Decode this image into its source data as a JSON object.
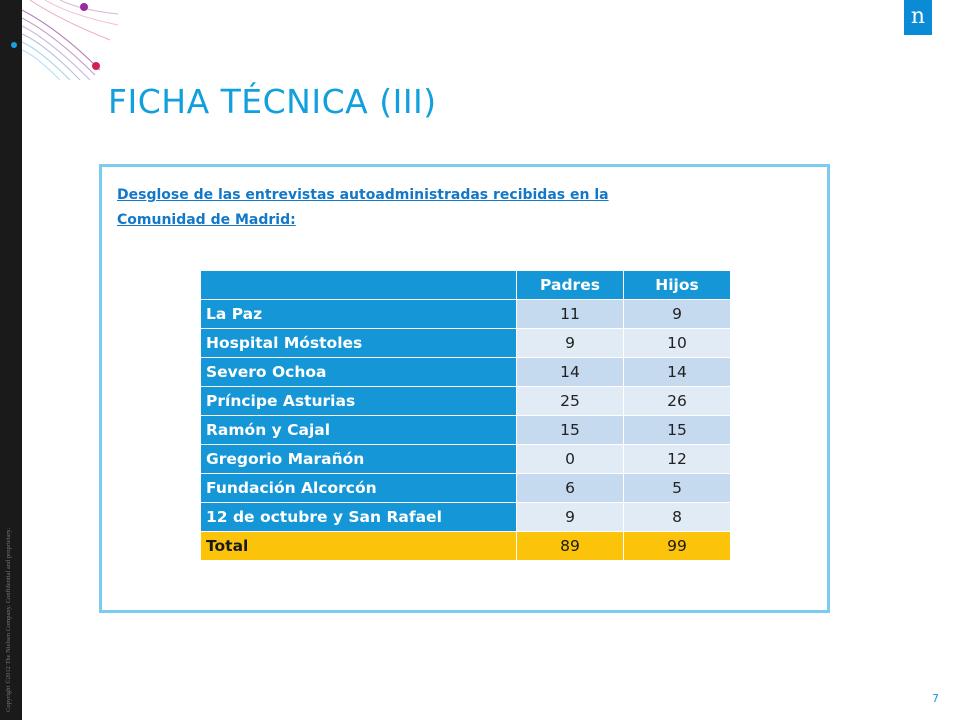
{
  "slide": {
    "title": "FICHA TÉCNICA (III)",
    "intro": "Desglose de las entrevistas autoadministradas  recibidas en la Comunidad  de Madrid:",
    "copyright": "Copyright ©2012 The Nielsen Company. Confidential and proprietary.",
    "page_number": "7",
    "logo_glyph": "n"
  },
  "table": {
    "headers": [
      "",
      "Padres",
      "Hijos"
    ],
    "rows": [
      {
        "label": "La Paz",
        "padres": "11",
        "hijos": "9"
      },
      {
        "label": "Hospital Móstoles",
        "padres": "9",
        "hijos": "10"
      },
      {
        "label": "Severo Ochoa",
        "padres": "14",
        "hijos": "14"
      },
      {
        "label": "Príncipe Asturias",
        "padres": "25",
        "hijos": "26"
      },
      {
        "label": "Ramón y Cajal",
        "padres": "15",
        "hijos": "15"
      },
      {
        "label": "Gregorio Marañón",
        "padres": "0",
        "hijos": "12"
      },
      {
        "label": "Fundación Alcorcón",
        "padres": "6",
        "hijos": "5"
      },
      {
        "label": "12 de octubre y San Rafael",
        "padres": "9",
        "hijos": "8"
      }
    ],
    "total": {
      "label": "Total",
      "padres": "89",
      "hijos": "99"
    }
  },
  "colors": {
    "title": "#12a0dc",
    "header_fill": "#1596d6",
    "row_fill_odd": "#c5d9ef",
    "row_fill_even": "#e1ebf6",
    "total_fill": "#fbc30a",
    "panel_border": "#7ccbf0",
    "logo": "#0a8bd6"
  }
}
